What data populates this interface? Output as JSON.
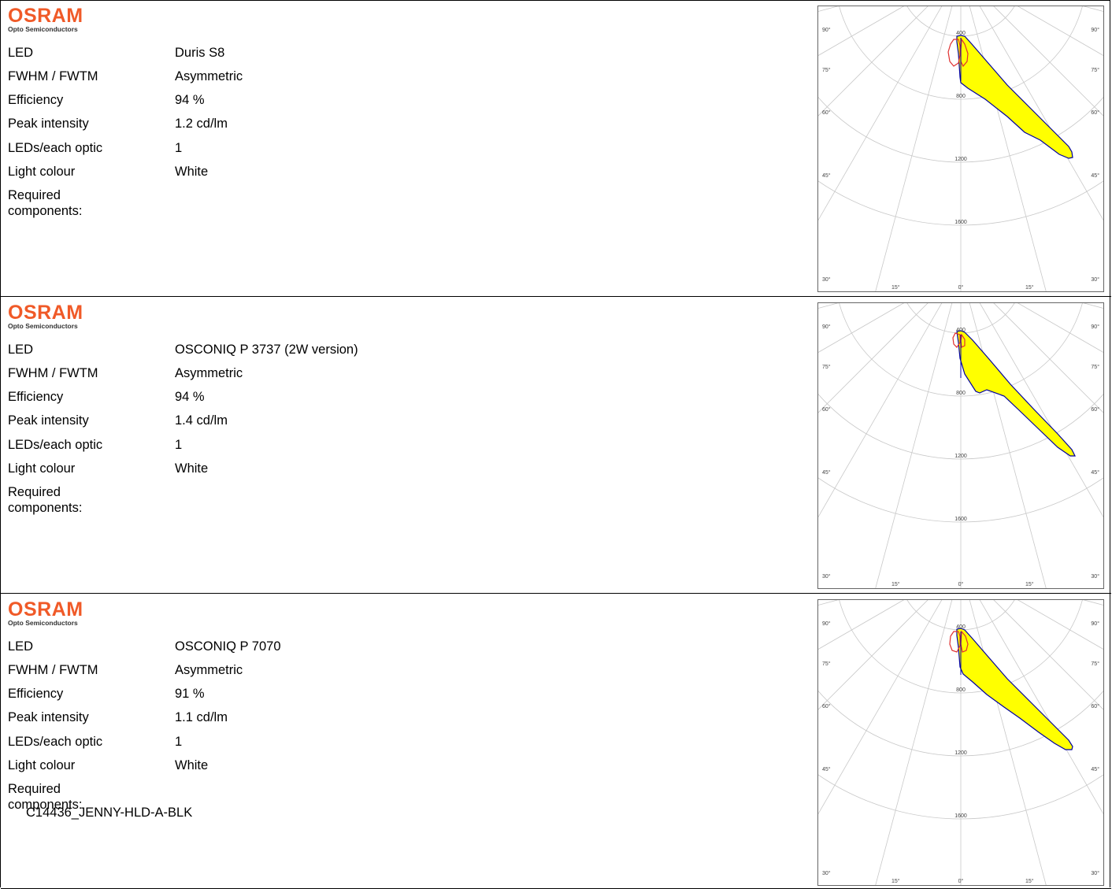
{
  "brand": {
    "name": "OSRAM",
    "subtitle": "Opto Semiconductors",
    "color": "#f05a28"
  },
  "labels": {
    "led": "LED",
    "fwhm": "FWHM / FWTM",
    "efficiency": "Efficiency",
    "peak": "Peak intensity",
    "leds_per_optic": "LEDs/each optic",
    "light_colour": "Light colour",
    "required": "Required components:"
  },
  "products": [
    {
      "led": "Duris S8",
      "fwhm": "Asymmetric",
      "efficiency": "94 %",
      "peak": "1.2 cd/lm",
      "leds_per_optic": "1",
      "light_colour": "White",
      "components": []
    },
    {
      "led": "OSCONIQ P 3737 (2W version)",
      "fwhm": "Asymmetric",
      "efficiency": "94 %",
      "peak": "1.4 cd/lm",
      "leds_per_optic": "1",
      "light_colour": "White",
      "components": []
    },
    {
      "led": "OSCONIQ P 7070",
      "fwhm": "Asymmetric",
      "efficiency": "91 %",
      "peak": "1.1 cd/lm",
      "leds_per_optic": "1",
      "light_colour": "White",
      "components": [
        "C14436_JENNY-HLD-A-BLK"
      ]
    }
  ],
  "polar": {
    "radial_ticks": [
      "400",
      "800",
      "1200",
      "1600"
    ],
    "angle_labels": [
      "90°",
      "75°",
      "60°",
      "45°",
      "30°",
      "15°",
      "0°"
    ],
    "colors": {
      "fill": "#ffff00",
      "outline": "#0000a0",
      "secondary": "#e03030",
      "grid": "#c8c8c8"
    }
  },
  "chart_data": [
    {
      "type": "polar",
      "radial_ticks": [
        400,
        800,
        1200,
        1600
      ],
      "angle_labels_deg": [
        90,
        75,
        60,
        45,
        30,
        15,
        0
      ],
      "series": [],
      "peak_intensity_approx": {
        "angle_deg": 35,
        "value": 1150
      }
    },
    {
      "type": "polar",
      "radial_ticks": [
        400,
        800,
        1200,
        1600
      ],
      "angle_labels_deg": [
        90,
        75,
        60,
        45,
        30,
        15,
        0
      ],
      "series": [],
      "peak_intensity_approx": {
        "angle_deg": 34,
        "value": 1300
      }
    },
    {
      "type": "polar",
      "radial_ticks": [
        400,
        800,
        1200,
        1600
      ],
      "angle_labels_deg": [
        90,
        75,
        60,
        45,
        30,
        15,
        0
      ],
      "series": [],
      "peak_intensity_approx": {
        "angle_deg": 36,
        "value": 1100
      }
    }
  ]
}
